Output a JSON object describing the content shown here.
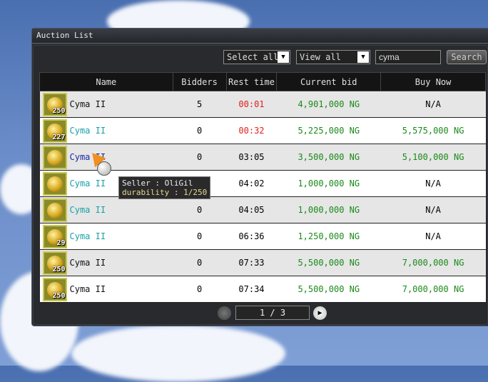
{
  "window": {
    "title": "Auction List"
  },
  "toolbar": {
    "select_label": "Select all",
    "view_label": "View all",
    "search_value": "cyma",
    "search_button": "Search"
  },
  "columns": [
    "Name",
    "Bidders",
    "Rest time",
    "Current bid",
    "Buy Now"
  ],
  "rows": [
    {
      "name": "Cyma II",
      "badge": "250",
      "bidders": "5",
      "rest": "00:01",
      "bid": "4,901,000 NG",
      "buy": "N/A",
      "name_color": "#111111",
      "rest_color": "red"
    },
    {
      "name": "Cyma II",
      "badge": "227",
      "bidders": "0",
      "rest": "00:32",
      "bid": "5,225,000 NG",
      "buy": "5,575,000 NG",
      "name_color": "#1aa0a8",
      "rest_color": "red"
    },
    {
      "name": "Cyma II",
      "badge": "",
      "bidders": "0",
      "rest": "03:05",
      "bid": "3,500,000 NG",
      "buy": "5,100,000 NG",
      "name_color": "#1a2aa0",
      "rest_color": "normal"
    },
    {
      "name": "Cyma II",
      "badge": "",
      "bidders": "",
      "rest": "04:02",
      "bid": "1,000,000 NG",
      "buy": "N/A",
      "name_color": "#1aa0a8",
      "rest_color": "normal"
    },
    {
      "name": "Cyma II",
      "badge": "",
      "bidders": "0",
      "rest": "04:05",
      "bid": "1,000,000 NG",
      "buy": "N/A",
      "name_color": "#1aa0a8",
      "rest_color": "normal"
    },
    {
      "name": "Cyma II",
      "badge": "29",
      "bidders": "0",
      "rest": "06:36",
      "bid": "1,250,000 NG",
      "buy": "N/A",
      "name_color": "#1aa0a8",
      "rest_color": "normal"
    },
    {
      "name": "Cyma II",
      "badge": "250",
      "bidders": "0",
      "rest": "07:33",
      "bid": "5,500,000 NG",
      "buy": "7,000,000 NG",
      "name_color": "#111111",
      "rest_color": "normal"
    },
    {
      "name": "Cyma II",
      "badge": "250",
      "bidders": "0",
      "rest": "07:34",
      "bid": "5,500,000 NG",
      "buy": "7,000,000 NG",
      "name_color": "#111111",
      "rest_color": "normal"
    }
  ],
  "tooltip": {
    "seller": "Seller : OliGil",
    "durability": "durability : 1/250"
  },
  "pagination": {
    "label": "1 / 3",
    "current": 1,
    "total": 3
  }
}
